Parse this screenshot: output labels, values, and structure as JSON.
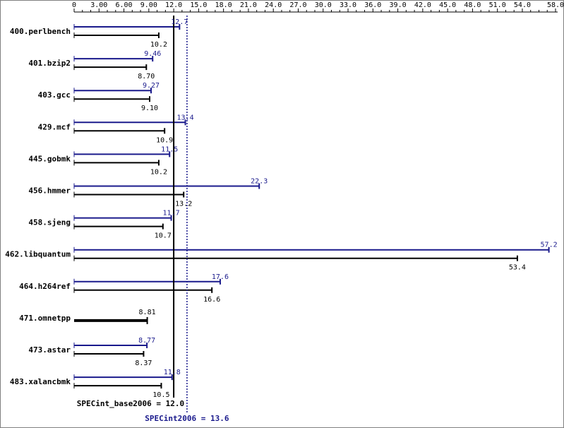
{
  "chart_data": {
    "type": "bar",
    "orientation": "horizontal",
    "xlim": [
      0,
      58.0
    ],
    "ticks": [
      "0",
      "3.00",
      "6.00",
      "9.00",
      "12.0",
      "15.0",
      "18.0",
      "21.0",
      "24.0",
      "27.0",
      "30.0",
      "33.0",
      "36.0",
      "39.0",
      "42.0",
      "45.0",
      "48.0",
      "51.0",
      "54.0",
      "58.0"
    ],
    "tick_values": [
      0,
      3,
      6,
      9,
      12,
      15,
      18,
      21,
      24,
      27,
      30,
      33,
      36,
      39,
      42,
      45,
      48,
      51,
      54,
      58
    ],
    "categories": [
      "400.perlbench",
      "401.bzip2",
      "403.gcc",
      "429.mcf",
      "445.gobmk",
      "456.hmmer",
      "458.sjeng",
      "462.libquantum",
      "464.h264ref",
      "471.omnetpp",
      "473.astar",
      "483.xalancbmk"
    ],
    "series": [
      {
        "key": "peak",
        "values": [
          12.7,
          9.46,
          9.27,
          13.4,
          11.5,
          22.3,
          11.7,
          57.2,
          17.6,
          null,
          8.77,
          11.8
        ],
        "labels": [
          "12.7",
          "9.46",
          "9.27",
          "13.4",
          "11.5",
          "22.3",
          "11.7",
          "57.2",
          "17.6",
          "",
          "8.77",
          "11.8"
        ]
      },
      {
        "key": "base",
        "values": [
          10.2,
          8.7,
          9.1,
          10.9,
          10.2,
          13.2,
          10.7,
          53.4,
          16.6,
          8.81,
          8.37,
          10.5
        ],
        "labels": [
          "10.2",
          "8.70",
          "9.10",
          "10.9",
          "10.2",
          "13.2",
          "10.7",
          "53.4",
          "16.6",
          "8.81",
          "8.37",
          "10.5"
        ]
      }
    ],
    "reference_lines": [
      {
        "key": "base",
        "value": 12.0,
        "label": "SPECint_base2006 = 12.0",
        "style": "solid"
      },
      {
        "key": "peak",
        "value": 13.6,
        "label": "SPECint2006 = 13.6",
        "style": "dotted"
      }
    ],
    "colors": {
      "base": "#000000",
      "peak": "#1a1a8c",
      "frame": "#808080"
    },
    "grid": false,
    "legend": "none"
  }
}
